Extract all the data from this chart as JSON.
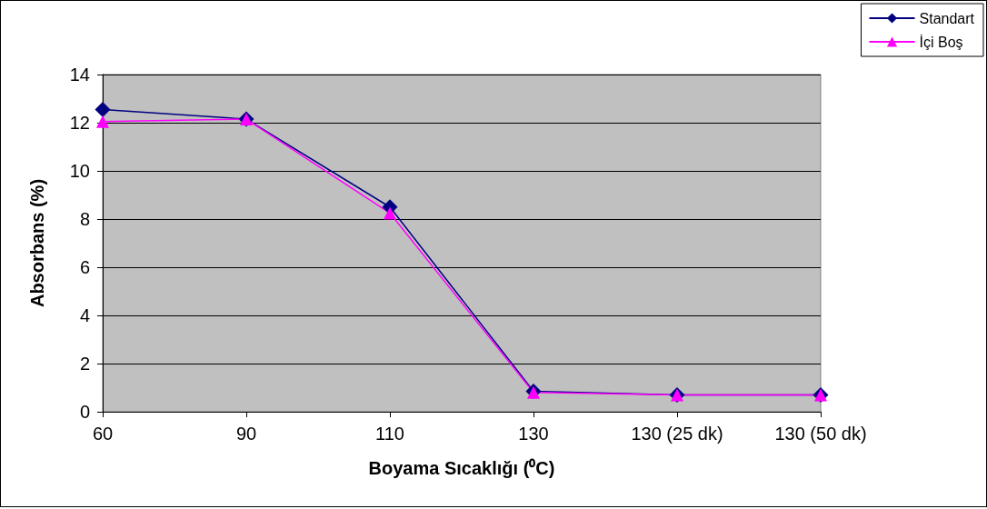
{
  "chart_data": {
    "type": "line",
    "xlabel": "Boyama Sıcaklığı (⁰C)",
    "ylabel": "Absorbans (%)",
    "categories": [
      "60",
      "90",
      "110",
      "130",
      "130 (25 dk)",
      "130 (50 dk)"
    ],
    "series": [
      {
        "name": "Standart",
        "color": "#000080",
        "marker": "diamond",
        "values": [
          12.55,
          12.15,
          8.5,
          0.85,
          0.7,
          0.7
        ]
      },
      {
        "name": "İçi Boş",
        "color": "#ff00ff",
        "marker": "triangle",
        "values": [
          12.05,
          12.15,
          8.25,
          0.8,
          0.7,
          0.7
        ]
      }
    ],
    "ylim": [
      0,
      14
    ],
    "yticks": [
      0,
      2,
      4,
      6,
      8,
      10,
      12,
      14
    ],
    "grid": "y",
    "legend": "top right",
    "line_style": "solid"
  }
}
